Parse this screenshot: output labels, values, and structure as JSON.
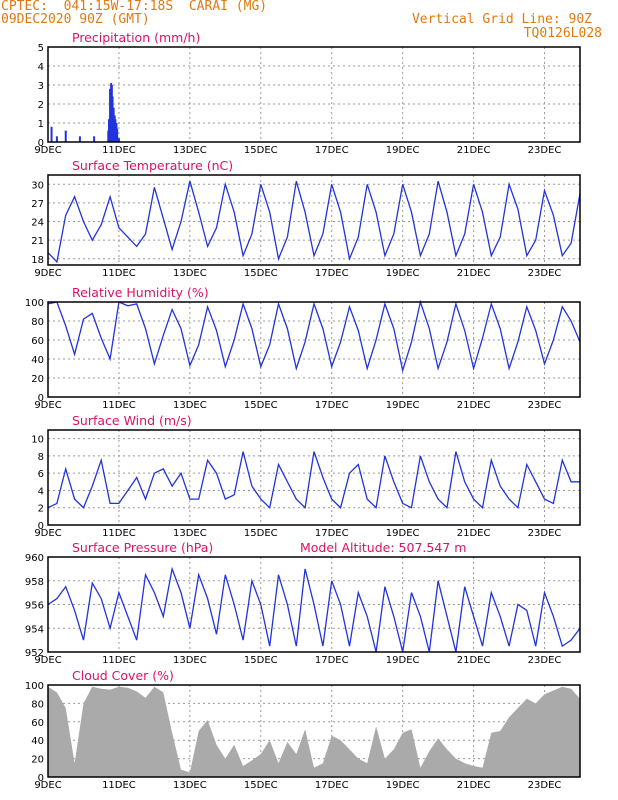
{
  "header": {
    "line1": "CPTEC:  041:15W-17:18S  CARAI (MG)",
    "line2": "09DEC2020 90Z (GMT)",
    "right1": "Vertical Grid Line: 90Z",
    "right2": "TQ0126L028"
  },
  "x_tick_labels": [
    "9DEC",
    "11DEC",
    "13DEC",
    "15DEC",
    "17DEC",
    "19DEC",
    "21DEC",
    "23DEC"
  ],
  "colors": {
    "line": "#2233dd",
    "title": "#dd1166",
    "header": "#e07a10",
    "cloud": "#aaaaaa",
    "grid": "#999999"
  },
  "chart_data": [
    {
      "type": "bar",
      "title": "Precipitation (mm/h)",
      "xlim": [
        0,
        15
      ],
      "ylim": [
        0,
        5
      ],
      "yticks": [
        0,
        1,
        2,
        3,
        4,
        5
      ],
      "x": [
        0.1,
        0.25,
        0.5,
        0.9,
        1.3,
        1.7,
        1.72,
        1.75,
        1.78,
        1.8,
        1.82,
        1.85,
        1.88,
        1.9,
        1.93,
        1.95,
        2.0
      ],
      "values": [
        0.8,
        0.3,
        0.6,
        0.3,
        0.3,
        0.6,
        1.2,
        2.8,
        3.1,
        3.0,
        2.4,
        1.8,
        1.4,
        1.2,
        1.0,
        0.7,
        0.2
      ]
    },
    {
      "type": "line",
      "title": "Surface Temperature (nC)",
      "xlim": [
        0,
        15
      ],
      "ylim": [
        17,
        31.5
      ],
      "yticks": [
        18,
        21,
        24,
        27,
        30
      ],
      "x": [
        0,
        0.25,
        0.5,
        0.75,
        1,
        1.25,
        1.5,
        1.75,
        2,
        2.25,
        2.5,
        2.75,
        3,
        3.25,
        3.5,
        3.75,
        4,
        4.25,
        4.5,
        4.75,
        5,
        5.25,
        5.5,
        5.75,
        6,
        6.25,
        6.5,
        6.75,
        7,
        7.25,
        7.5,
        7.75,
        8,
        8.25,
        8.5,
        8.75,
        9,
        9.25,
        9.5,
        9.75,
        10,
        10.25,
        10.5,
        10.75,
        11,
        11.25,
        11.5,
        11.75,
        12,
        12.25,
        12.5,
        12.75,
        13,
        13.25,
        13.5,
        13.75,
        14,
        14.25,
        14.5,
        14.75,
        15
      ],
      "values": [
        19,
        17.5,
        25,
        28,
        24,
        21,
        23.5,
        28,
        23,
        21.5,
        20,
        22,
        29.5,
        24.5,
        19.5,
        24,
        30.5,
        25.5,
        20,
        23,
        30,
        25.5,
        18.5,
        22,
        30,
        25.5,
        18,
        21.5,
        30.5,
        25.5,
        18.5,
        22,
        30,
        25.5,
        18,
        21.5,
        30,
        25.5,
        18.5,
        22,
        30,
        25.5,
        18.5,
        22,
        30.5,
        25.5,
        18.5,
        22,
        30,
        25.5,
        18.5,
        21.5,
        30,
        26,
        18.5,
        21,
        29,
        25,
        18.5,
        20.5,
        28.5
      ]
    },
    {
      "type": "line",
      "title": "Relative Humidity (%)",
      "xlim": [
        0,
        15
      ],
      "ylim": [
        0,
        100
      ],
      "yticks": [
        0,
        20,
        40,
        60,
        80,
        100
      ],
      "x": [
        0,
        0.25,
        0.5,
        0.75,
        1,
        1.25,
        1.5,
        1.75,
        2,
        2.25,
        2.5,
        2.75,
        3,
        3.25,
        3.5,
        3.75,
        4,
        4.25,
        4.5,
        4.75,
        5,
        5.25,
        5.5,
        5.75,
        6,
        6.25,
        6.5,
        6.75,
        7,
        7.25,
        7.5,
        7.75,
        8,
        8.25,
        8.5,
        8.75,
        9,
        9.25,
        9.5,
        9.75,
        10,
        10.25,
        10.5,
        10.75,
        11,
        11.25,
        11.5,
        11.75,
        12,
        12.25,
        12.5,
        12.75,
        13,
        13.25,
        13.5,
        13.75,
        14,
        14.25,
        14.5,
        14.75,
        15
      ],
      "values": [
        98,
        100,
        75,
        45,
        82,
        88,
        62,
        40,
        100,
        96,
        98,
        72,
        35,
        65,
        92,
        72,
        33,
        55,
        95,
        70,
        32,
        60,
        98,
        72,
        32,
        55,
        98,
        72,
        30,
        58,
        98,
        72,
        32,
        58,
        95,
        70,
        30,
        60,
        98,
        72,
        28,
        58,
        100,
        72,
        30,
        58,
        98,
        70,
        30,
        62,
        98,
        72,
        30,
        58,
        95,
        70,
        35,
        60,
        95,
        80,
        58
      ]
    },
    {
      "type": "line",
      "title": "Surface Wind (m/s)",
      "xlim": [
        0,
        15
      ],
      "ylim": [
        0,
        11
      ],
      "yticks": [
        0,
        2,
        4,
        6,
        8,
        10
      ],
      "x": [
        0,
        0.25,
        0.5,
        0.75,
        1,
        1.25,
        1.5,
        1.75,
        2,
        2.25,
        2.5,
        2.75,
        3,
        3.25,
        3.5,
        3.75,
        4,
        4.25,
        4.5,
        4.75,
        5,
        5.25,
        5.5,
        5.75,
        6,
        6.25,
        6.5,
        6.75,
        7,
        7.25,
        7.5,
        7.75,
        8,
        8.25,
        8.5,
        8.75,
        9,
        9.25,
        9.5,
        9.75,
        10,
        10.25,
        10.5,
        10.75,
        11,
        11.25,
        11.5,
        11.75,
        12,
        12.25,
        12.5,
        12.75,
        13,
        13.25,
        13.5,
        13.75,
        14,
        14.25,
        14.5,
        14.75,
        15
      ],
      "values": [
        2,
        2.5,
        6.5,
        3,
        2,
        4.5,
        7.5,
        2.5,
        2.5,
        4,
        5.5,
        3,
        6,
        6.5,
        4.5,
        6,
        3,
        3,
        7.5,
        6,
        3,
        3.5,
        8.5,
        4.5,
        3,
        2,
        7,
        5,
        3,
        2,
        8.5,
        5.5,
        3,
        2,
        6,
        7,
        3,
        2,
        8,
        5,
        2.5,
        2,
        8,
        5,
        3,
        2,
        8.5,
        5,
        3,
        2,
        7.5,
        4.5,
        3,
        2,
        7,
        5,
        3,
        2.5,
        7.5,
        5,
        5
      ]
    },
    {
      "type": "line",
      "title": "Surface Pressure (hPa)",
      "annotation": "Model Altitude: 507.547 m",
      "xlim": [
        0,
        15
      ],
      "ylim": [
        952,
        960
      ],
      "yticks": [
        952,
        954,
        956,
        958,
        960
      ],
      "x": [
        0,
        0.25,
        0.5,
        0.75,
        1,
        1.25,
        1.5,
        1.75,
        2,
        2.25,
        2.5,
        2.75,
        3,
        3.25,
        3.5,
        3.75,
        4,
        4.25,
        4.5,
        4.75,
        5,
        5.25,
        5.5,
        5.75,
        6,
        6.25,
        6.5,
        6.75,
        7,
        7.25,
        7.5,
        7.75,
        8,
        8.25,
        8.5,
        8.75,
        9,
        9.25,
        9.5,
        9.75,
        10,
        10.25,
        10.5,
        10.75,
        11,
        11.25,
        11.5,
        11.75,
        12,
        12.25,
        12.5,
        12.75,
        13,
        13.25,
        13.5,
        13.75,
        14,
        14.25,
        14.5,
        14.75,
        15
      ],
      "values": [
        956,
        956.5,
        957.5,
        955.5,
        953,
        957.8,
        956.5,
        954,
        957,
        955,
        953,
        958.5,
        957,
        955,
        959,
        957,
        954,
        958.5,
        956.5,
        953.5,
        958.5,
        956,
        953,
        958,
        956,
        952.5,
        958.5,
        956,
        952.5,
        959,
        956,
        952.5,
        958,
        956,
        952.5,
        957,
        955,
        952,
        957.5,
        955,
        952,
        957,
        955,
        952,
        958,
        955,
        952,
        957.5,
        955,
        952.5,
        957,
        955,
        952.5,
        956,
        955.5,
        952.5,
        957,
        955,
        952.5,
        953,
        954
      ]
    },
    {
      "type": "area",
      "title": "Cloud Cover (%)",
      "xlim": [
        0,
        15
      ],
      "ylim": [
        0,
        100
      ],
      "yticks": [
        0,
        20,
        40,
        60,
        80,
        100
      ],
      "x": [
        0,
        0.25,
        0.5,
        0.75,
        1,
        1.25,
        1.5,
        1.75,
        2,
        2.25,
        2.5,
        2.75,
        3,
        3.25,
        3.5,
        3.75,
        4,
        4.25,
        4.5,
        4.75,
        5,
        5.25,
        5.5,
        5.75,
        6,
        6.25,
        6.5,
        6.75,
        7,
        7.25,
        7.5,
        7.75,
        8,
        8.25,
        8.5,
        8.75,
        9,
        9.25,
        9.5,
        9.75,
        10,
        10.25,
        10.5,
        10.75,
        11,
        11.25,
        11.5,
        11.75,
        12,
        12.25,
        12.5,
        12.75,
        13,
        13.25,
        13.5,
        13.75,
        14,
        14.25,
        14.5,
        14.75,
        15
      ],
      "values": [
        98,
        92,
        75,
        15,
        80,
        98,
        96,
        95,
        98,
        97,
        93,
        86,
        98,
        92,
        48,
        8,
        5,
        50,
        62,
        35,
        20,
        35,
        12,
        18,
        25,
        40,
        15,
        38,
        25,
        52,
        10,
        15,
        45,
        40,
        30,
        20,
        15,
        55,
        20,
        30,
        48,
        52,
        10,
        28,
        42,
        30,
        20,
        15,
        12,
        10,
        48,
        50,
        65,
        75,
        85,
        80,
        90,
        94,
        98,
        96,
        85
      ]
    }
  ]
}
